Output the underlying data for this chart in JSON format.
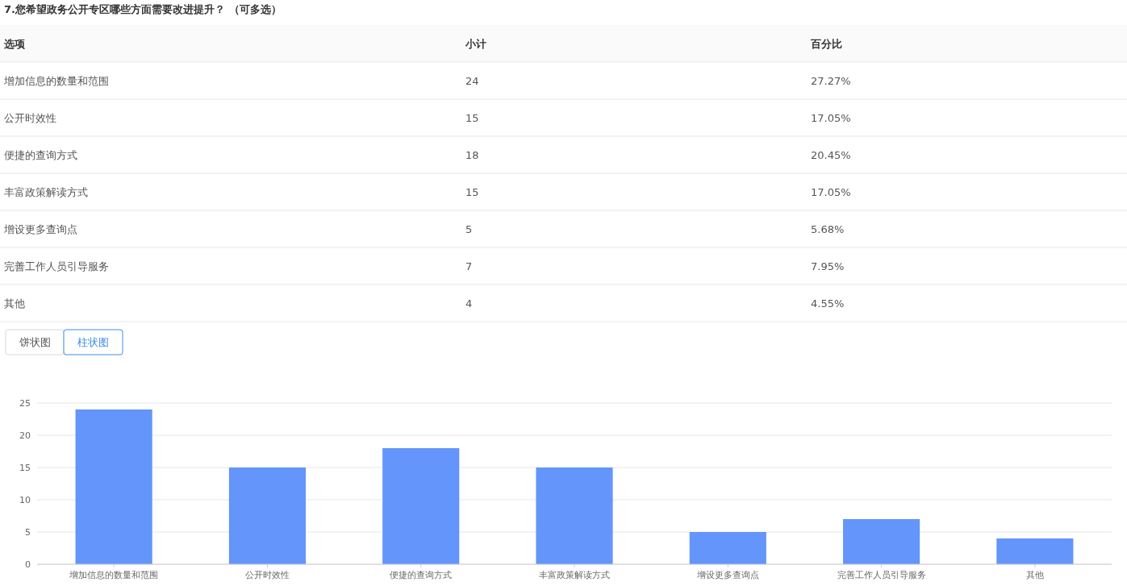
{
  "chart_data": {
    "type": "bar",
    "title": "7.您希望政务公开专区哪些方面需要改进提升？ （可多选）",
    "categories": [
      "增加信息的数量和范围",
      "公开时效性",
      "便捷的查询方式",
      "丰富政策解读方式",
      "增设更多查询点",
      "完善工作人员引导服务",
      "其他"
    ],
    "values": [
      24,
      15,
      18,
      15,
      5,
      7,
      4
    ],
    "color": "#6395fa",
    "ylim": [
      0,
      25
    ],
    "yticks": [
      0,
      5,
      10,
      15,
      20,
      25
    ],
    "grid": "y",
    "annotations": [
      "选项",
      "小计",
      "百分比",
      "24",
      "15",
      "18",
      "15",
      "5",
      "7",
      "4",
      "27.27%",
      "17.05%",
      "20.45%",
      "17.05%",
      "5.68%",
      "7.95%",
      "4.55%",
      "饼状图",
      "柱状图"
    ]
  }
}
